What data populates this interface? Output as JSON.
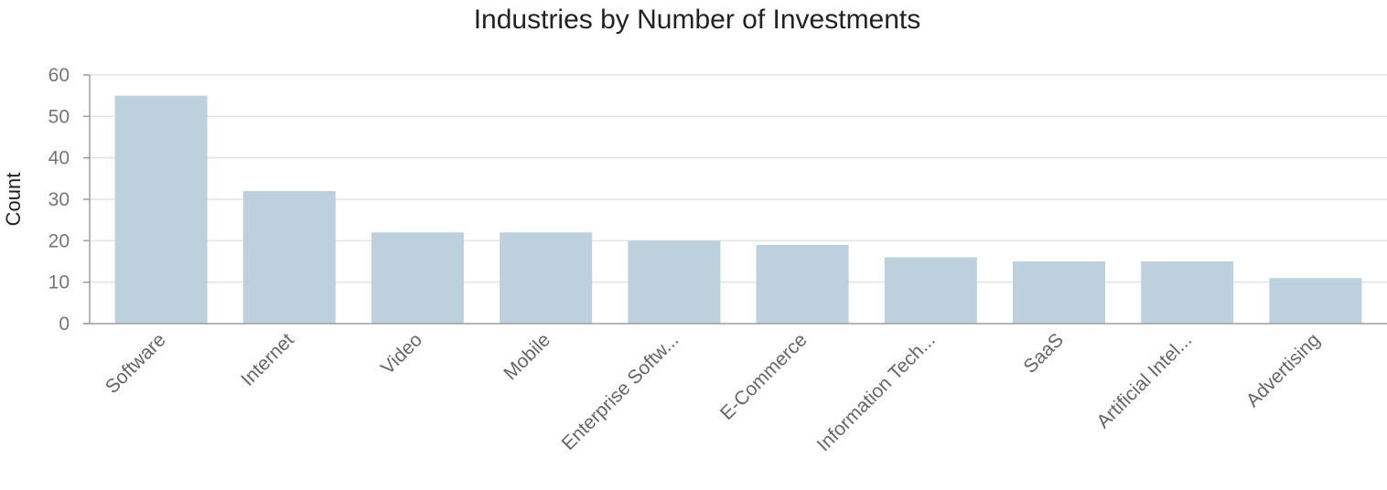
{
  "chart_data": {
    "type": "bar",
    "title": "Industries by Number of Investments",
    "xlabel": "",
    "ylabel": "Count",
    "ylim": [
      0,
      60
    ],
    "yticks": [
      0,
      10,
      20,
      30,
      40,
      50,
      60
    ],
    "grid": true,
    "categories": [
      "Software",
      "Internet",
      "Video",
      "Mobile",
      "Enterprise Softw...",
      "E-Commerce",
      "Information Tech...",
      "SaaS",
      "Artificial Intel...",
      "Advertising"
    ],
    "values": [
      55,
      32,
      22,
      22,
      20,
      19,
      16,
      15,
      15,
      11
    ],
    "colors": {
      "bar": "#bdd0dd",
      "grid": "#e3e3e3",
      "axis": "#9e9e9e"
    }
  }
}
